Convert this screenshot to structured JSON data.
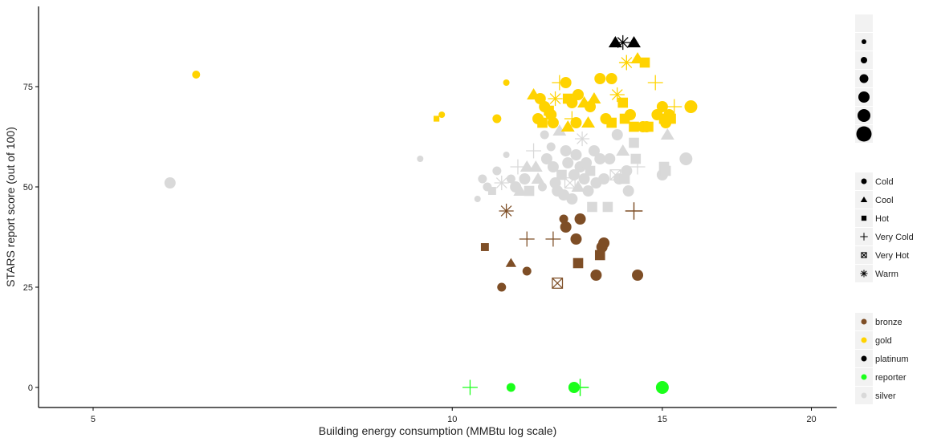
{
  "chart_data": {
    "type": "scatter",
    "xlabel": "Building energy consumption (MMBtu log scale)",
    "ylabel": "STARS report score (out of 100)",
    "x_scale": "log",
    "xlim": [
      4.5,
      21
    ],
    "ylim": [
      -5,
      95
    ],
    "x_ticks": [
      {
        "value": 5,
        "label": "5"
      },
      {
        "value": 10,
        "label": "10"
      },
      {
        "value": 15,
        "label": "15"
      },
      {
        "value": 20,
        "label": "20"
      }
    ],
    "y_ticks": [
      {
        "value": 0,
        "label": "0"
      },
      {
        "value": 25,
        "label": "25"
      },
      {
        "value": 50,
        "label": "50"
      },
      {
        "value": 75,
        "label": "75"
      }
    ],
    "grid": false,
    "legends": {
      "size": {
        "placement": "right",
        "levels": [
          1,
          2,
          3,
          4,
          5,
          6,
          7
        ]
      },
      "shape": {
        "placement": "right",
        "items": [
          {
            "key": "Cold",
            "label": "Cold",
            "shape": "circle"
          },
          {
            "key": "Cool",
            "label": "Cool",
            "shape": "triangle"
          },
          {
            "key": "Hot",
            "label": "Hot",
            "shape": "square"
          },
          {
            "key": "Very Cold",
            "label": "Very Cold",
            "shape": "plus"
          },
          {
            "key": "Very Hot",
            "label": "Very Hot",
            "shape": "boxx"
          },
          {
            "key": "Warm",
            "label": "Warm",
            "shape": "asterisk"
          }
        ]
      },
      "color": {
        "placement": "right",
        "items": [
          {
            "key": "bronze",
            "label": "bronze",
            "color": "#7e4e26"
          },
          {
            "key": "gold",
            "label": "gold",
            "color": "#ffd300"
          },
          {
            "key": "platinum",
            "label": "platinum",
            "color": "#000000"
          },
          {
            "key": "reporter",
            "label": "reporter",
            "color": "#1aff1a"
          },
          {
            "key": "silver",
            "label": "silver",
            "color": "#d9d9d9"
          }
        ]
      }
    },
    "series": [
      {
        "name": "platinum",
        "points": [
          {
            "x": 13.7,
            "y": 86,
            "shape": "Cool",
            "size": 5
          },
          {
            "x": 14.2,
            "y": 86,
            "shape": "Cool",
            "size": 5
          },
          {
            "x": 13.9,
            "y": 86,
            "shape": "Warm",
            "size": 5
          }
        ]
      },
      {
        "name": "gold",
        "points": [
          {
            "x": 6.1,
            "y": 78,
            "shape": "Cold",
            "size": 1
          },
          {
            "x": 9.7,
            "y": 67,
            "shape": "Hot",
            "size": 3
          },
          {
            "x": 9.8,
            "y": 68,
            "shape": "Cold",
            "size": 3
          },
          {
            "x": 10.9,
            "y": 67,
            "shape": "Cold",
            "size": 4
          },
          {
            "x": 11.1,
            "y": 76,
            "shape": "Cold",
            "size": 3
          },
          {
            "x": 11.7,
            "y": 73,
            "shape": "Cool",
            "size": 5
          },
          {
            "x": 11.85,
            "y": 72,
            "shape": "Cold",
            "size": 5
          },
          {
            "x": 11.95,
            "y": 70,
            "shape": "Cold",
            "size": 5
          },
          {
            "x": 12.05,
            "y": 69,
            "shape": "Hot",
            "size": 5
          },
          {
            "x": 11.8,
            "y": 67,
            "shape": "Cold",
            "size": 5
          },
          {
            "x": 11.9,
            "y": 66,
            "shape": "Hot",
            "size": 5
          },
          {
            "x": 12.1,
            "y": 68,
            "shape": "Cold",
            "size": 5
          },
          {
            "x": 12.15,
            "y": 66,
            "shape": "Cold",
            "size": 5
          },
          {
            "x": 12.2,
            "y": 72,
            "shape": "Warm",
            "size": 5
          },
          {
            "x": 12.3,
            "y": 76,
            "shape": "Very Cold",
            "size": 5
          },
          {
            "x": 12.45,
            "y": 76,
            "shape": "Cold",
            "size": 5
          },
          {
            "x": 12.5,
            "y": 72,
            "shape": "Hot",
            "size": 5
          },
          {
            "x": 12.6,
            "y": 71,
            "shape": "Cold",
            "size": 5
          },
          {
            "x": 12.75,
            "y": 73,
            "shape": "Cold",
            "size": 5
          },
          {
            "x": 12.6,
            "y": 67,
            "shape": "Very Cold",
            "size": 5
          },
          {
            "x": 12.7,
            "y": 66,
            "shape": "Cold",
            "size": 5
          },
          {
            "x": 12.5,
            "y": 65,
            "shape": "Cool",
            "size": 5
          },
          {
            "x": 12.9,
            "y": 71,
            "shape": "Cool",
            "size": 5
          },
          {
            "x": 13.05,
            "y": 70,
            "shape": "Cold",
            "size": 5
          },
          {
            "x": 13.15,
            "y": 72,
            "shape": "Cool",
            "size": 5
          },
          {
            "x": 13.0,
            "y": 66,
            "shape": "Cool",
            "size": 5
          },
          {
            "x": 13.3,
            "y": 77,
            "shape": "Cold",
            "size": 5
          },
          {
            "x": 13.6,
            "y": 77,
            "shape": "Cold",
            "size": 5
          },
          {
            "x": 13.45,
            "y": 67,
            "shape": "Cold",
            "size": 5
          },
          {
            "x": 13.6,
            "y": 66,
            "shape": "Hot",
            "size": 5
          },
          {
            "x": 13.75,
            "y": 73,
            "shape": "Warm",
            "size": 5
          },
          {
            "x": 13.9,
            "y": 71,
            "shape": "Hot",
            "size": 5
          },
          {
            "x": 13.95,
            "y": 67,
            "shape": "Hot",
            "size": 5
          },
          {
            "x": 14.1,
            "y": 68,
            "shape": "Cold",
            "size": 5
          },
          {
            "x": 14.2,
            "y": 65,
            "shape": "Hot",
            "size": 5
          },
          {
            "x": 14.45,
            "y": 65,
            "shape": "Cold",
            "size": 5
          },
          {
            "x": 14.55,
            "y": 65,
            "shape": "Cold",
            "size": 5
          },
          {
            "x": 14.6,
            "y": 65,
            "shape": "Hot",
            "size": 5
          },
          {
            "x": 14.0,
            "y": 81,
            "shape": "Very Cold",
            "size": 5
          },
          {
            "x": 14.0,
            "y": 81,
            "shape": "Warm",
            "size": 5
          },
          {
            "x": 14.3,
            "y": 82,
            "shape": "Cool",
            "size": 5
          },
          {
            "x": 14.5,
            "y": 81,
            "shape": "Hot",
            "size": 5
          },
          {
            "x": 14.8,
            "y": 76,
            "shape": "Very Cold",
            "size": 5
          },
          {
            "x": 14.85,
            "y": 68,
            "shape": "Cold",
            "size": 5
          },
          {
            "x": 15.0,
            "y": 70,
            "shape": "Cold",
            "size": 5
          },
          {
            "x": 15.05,
            "y": 67,
            "shape": "Hot",
            "size": 5
          },
          {
            "x": 15.1,
            "y": 66,
            "shape": "Cold",
            "size": 5
          },
          {
            "x": 15.2,
            "y": 68,
            "shape": "Cold",
            "size": 5
          },
          {
            "x": 15.25,
            "y": 67,
            "shape": "Hot",
            "size": 5
          },
          {
            "x": 15.35,
            "y": 70,
            "shape": "Very Cold",
            "size": 5
          },
          {
            "x": 15.85,
            "y": 70,
            "shape": "Cold",
            "size": 6
          }
        ]
      },
      {
        "name": "silver",
        "points": [
          {
            "x": 5.8,
            "y": 51,
            "shape": "Cold",
            "size": 5
          },
          {
            "x": 9.4,
            "y": 57,
            "shape": "Cold",
            "size": 3
          },
          {
            "x": 10.5,
            "y": 47,
            "shape": "Cold",
            "size": 3
          },
          {
            "x": 10.6,
            "y": 52,
            "shape": "Cold",
            "size": 4
          },
          {
            "x": 10.7,
            "y": 50,
            "shape": "Cold",
            "size": 4
          },
          {
            "x": 10.8,
            "y": 49,
            "shape": "Hot",
            "size": 4
          },
          {
            "x": 10.9,
            "y": 54,
            "shape": "Cold",
            "size": 4
          },
          {
            "x": 11.0,
            "y": 51,
            "shape": "Warm",
            "size": 5
          },
          {
            "x": 11.1,
            "y": 58,
            "shape": "Cold",
            "size": 3
          },
          {
            "x": 11.2,
            "y": 52,
            "shape": "Cold",
            "size": 4
          },
          {
            "x": 11.3,
            "y": 50,
            "shape": "Cold",
            "size": 5
          },
          {
            "x": 11.35,
            "y": 55,
            "shape": "Very Cold",
            "size": 5
          },
          {
            "x": 11.4,
            "y": 49,
            "shape": "Cool",
            "size": 5
          },
          {
            "x": 11.5,
            "y": 52,
            "shape": "Cold",
            "size": 5
          },
          {
            "x": 11.55,
            "y": 55,
            "shape": "Cool",
            "size": 5
          },
          {
            "x": 11.6,
            "y": 49,
            "shape": "Hot",
            "size": 5
          },
          {
            "x": 11.7,
            "y": 59,
            "shape": "Very Cold",
            "size": 5
          },
          {
            "x": 11.75,
            "y": 55,
            "shape": "Cool",
            "size": 5
          },
          {
            "x": 11.8,
            "y": 52,
            "shape": "Cool",
            "size": 5
          },
          {
            "x": 11.9,
            "y": 50,
            "shape": "Cold",
            "size": 4
          },
          {
            "x": 11.95,
            "y": 63,
            "shape": "Cold",
            "size": 4
          },
          {
            "x": 12.0,
            "y": 57,
            "shape": "Cold",
            "size": 5
          },
          {
            "x": 12.1,
            "y": 60,
            "shape": "Cold",
            "size": 4
          },
          {
            "x": 12.15,
            "y": 55,
            "shape": "Cold",
            "size": 5
          },
          {
            "x": 12.2,
            "y": 51,
            "shape": "Cold",
            "size": 5
          },
          {
            "x": 12.25,
            "y": 49,
            "shape": "Cold",
            "size": 5
          },
          {
            "x": 12.3,
            "y": 64,
            "shape": "Cool",
            "size": 5
          },
          {
            "x": 12.35,
            "y": 53,
            "shape": "Hot",
            "size": 5
          },
          {
            "x": 12.4,
            "y": 48,
            "shape": "Cold",
            "size": 5
          },
          {
            "x": 12.45,
            "y": 59,
            "shape": "Cold",
            "size": 5
          },
          {
            "x": 12.5,
            "y": 56,
            "shape": "Cold",
            "size": 5
          },
          {
            "x": 12.55,
            "y": 51,
            "shape": "Very Hot",
            "size": 5
          },
          {
            "x": 12.6,
            "y": 47,
            "shape": "Cold",
            "size": 5
          },
          {
            "x": 12.65,
            "y": 53,
            "shape": "Cold",
            "size": 5
          },
          {
            "x": 12.7,
            "y": 58,
            "shape": "Cold",
            "size": 5
          },
          {
            "x": 12.75,
            "y": 50,
            "shape": "Cool",
            "size": 5
          },
          {
            "x": 12.8,
            "y": 55,
            "shape": "Cold",
            "size": 5
          },
          {
            "x": 12.85,
            "y": 62,
            "shape": "Warm",
            "size": 5
          },
          {
            "x": 12.9,
            "y": 52,
            "shape": "Cold",
            "size": 5
          },
          {
            "x": 12.95,
            "y": 56,
            "shape": "Cold",
            "size": 5
          },
          {
            "x": 13.0,
            "y": 49,
            "shape": "Cold",
            "size": 5
          },
          {
            "x": 13.05,
            "y": 54,
            "shape": "Hot",
            "size": 5
          },
          {
            "x": 13.1,
            "y": 45,
            "shape": "Hot",
            "size": 5
          },
          {
            "x": 13.15,
            "y": 59,
            "shape": "Cold",
            "size": 5
          },
          {
            "x": 13.2,
            "y": 51,
            "shape": "Cold",
            "size": 5
          },
          {
            "x": 13.3,
            "y": 57,
            "shape": "Cold",
            "size": 5
          },
          {
            "x": 13.4,
            "y": 52,
            "shape": "Cold",
            "size": 5
          },
          {
            "x": 13.5,
            "y": 45,
            "shape": "Hot",
            "size": 5
          },
          {
            "x": 13.55,
            "y": 57,
            "shape": "Cold",
            "size": 5
          },
          {
            "x": 13.7,
            "y": 53,
            "shape": "Very Hot",
            "size": 5
          },
          {
            "x": 13.75,
            "y": 63,
            "shape": "Cold",
            "size": 5
          },
          {
            "x": 13.8,
            "y": 52,
            "shape": "Cold",
            "size": 5
          },
          {
            "x": 13.9,
            "y": 59,
            "shape": "Cool",
            "size": 5
          },
          {
            "x": 13.95,
            "y": 52,
            "shape": "Hot",
            "size": 5
          },
          {
            "x": 14.0,
            "y": 54,
            "shape": "Cold",
            "size": 5
          },
          {
            "x": 14.05,
            "y": 49,
            "shape": "Cold",
            "size": 5
          },
          {
            "x": 14.2,
            "y": 61,
            "shape": "Hot",
            "size": 5
          },
          {
            "x": 14.25,
            "y": 57,
            "shape": "Hot",
            "size": 5
          },
          {
            "x": 14.3,
            "y": 55,
            "shape": "Very Cold",
            "size": 5
          },
          {
            "x": 15.0,
            "y": 53,
            "shape": "Cold",
            "size": 5
          },
          {
            "x": 15.05,
            "y": 55,
            "shape": "Hot",
            "size": 5
          },
          {
            "x": 15.1,
            "y": 54,
            "shape": "Hot",
            "size": 5
          },
          {
            "x": 15.15,
            "y": 63,
            "shape": "Cool",
            "size": 5
          },
          {
            "x": 15.7,
            "y": 57,
            "shape": "Cold",
            "size": 6
          }
        ]
      },
      {
        "name": "bronze",
        "points": [
          {
            "x": 10.65,
            "y": 35,
            "shape": "Hot",
            "size": 4
          },
          {
            "x": 11.0,
            "y": 25,
            "shape": "Cold",
            "size": 4
          },
          {
            "x": 11.1,
            "y": 44,
            "shape": "Warm",
            "size": 5
          },
          {
            "x": 11.2,
            "y": 31,
            "shape": "Cool",
            "size": 4
          },
          {
            "x": 11.55,
            "y": 37,
            "shape": "Very Cold",
            "size": 5
          },
          {
            "x": 11.55,
            "y": 29,
            "shape": "Cold",
            "size": 4
          },
          {
            "x": 12.15,
            "y": 37,
            "shape": "Very Cold",
            "size": 5
          },
          {
            "x": 12.25,
            "y": 26,
            "shape": "Very Hot",
            "size": 5
          },
          {
            "x": 12.4,
            "y": 42,
            "shape": "Cold",
            "size": 4
          },
          {
            "x": 12.45,
            "y": 40,
            "shape": "Cold",
            "size": 5
          },
          {
            "x": 12.7,
            "y": 37,
            "shape": "Cold",
            "size": 5
          },
          {
            "x": 12.75,
            "y": 31,
            "shape": "Hot",
            "size": 5
          },
          {
            "x": 12.8,
            "y": 42,
            "shape": "Cold",
            "size": 5
          },
          {
            "x": 13.2,
            "y": 28,
            "shape": "Cold",
            "size": 5
          },
          {
            "x": 13.3,
            "y": 33,
            "shape": "Hot",
            "size": 5
          },
          {
            "x": 13.35,
            "y": 35,
            "shape": "Cold",
            "size": 5
          },
          {
            "x": 13.4,
            "y": 36,
            "shape": "Cold",
            "size": 5
          },
          {
            "x": 14.2,
            "y": 44,
            "shape": "Very Cold",
            "size": 6
          },
          {
            "x": 14.3,
            "y": 28,
            "shape": "Cold",
            "size": 5
          }
        ]
      },
      {
        "name": "reporter",
        "points": [
          {
            "x": 10.35,
            "y": 0,
            "shape": "Very Cold",
            "size": 5
          },
          {
            "x": 11.2,
            "y": 0,
            "shape": "Cold",
            "size": 4
          },
          {
            "x": 12.65,
            "y": 0,
            "shape": "Cold",
            "size": 5
          },
          {
            "x": 12.8,
            "y": 0,
            "shape": "Very Cold",
            "size": 6
          },
          {
            "x": 15.0,
            "y": 0,
            "shape": "Cold",
            "size": 6
          }
        ]
      }
    ]
  }
}
